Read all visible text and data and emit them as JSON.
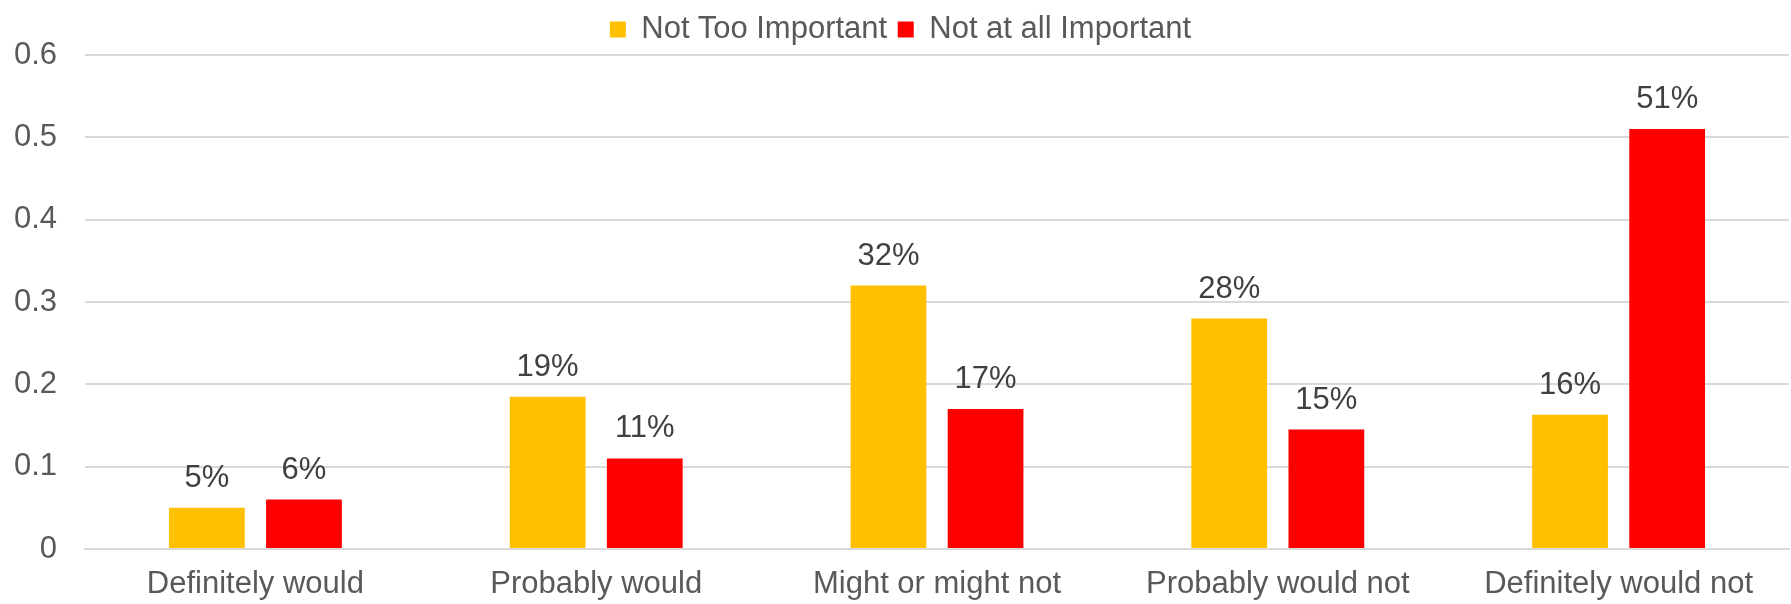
{
  "chart_data": {
    "type": "bar",
    "categories": [
      "Definitely would",
      "Probably would",
      "Might or might not",
      "Probably would not",
      "Definitely would not"
    ],
    "series": [
      {
        "name": "Not Too Important",
        "color": "#ffc000",
        "values": [
          0.05,
          0.185,
          0.32,
          0.28,
          0.163
        ],
        "value_labels": [
          "5%",
          "19%",
          "32%",
          "28%",
          "16%"
        ]
      },
      {
        "name": "Not at all Important",
        "color": "#ff0000",
        "values": [
          0.06,
          0.11,
          0.17,
          0.145,
          0.51
        ],
        "value_labels": [
          "6%",
          "11%",
          "17%",
          "15%",
          "51%"
        ]
      }
    ],
    "ylim": [
      0,
      0.6
    ],
    "yticks": [
      0,
      0.1,
      0.2,
      0.3,
      0.4,
      0.5,
      0.6
    ],
    "grid": "y",
    "legend": "top"
  }
}
